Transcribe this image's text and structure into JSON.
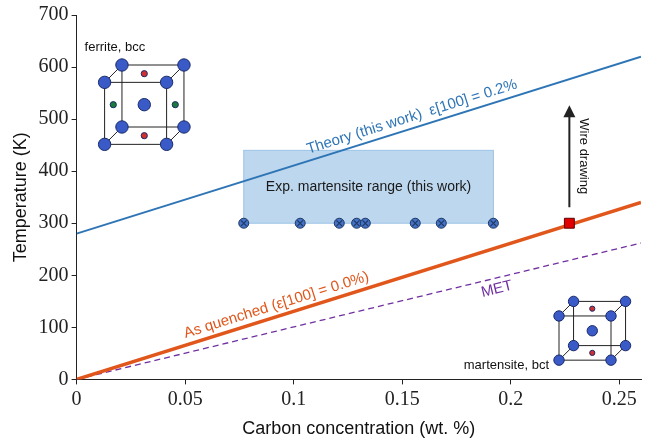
{
  "chart_data": {
    "type": "line",
    "x_label": "Carbon concentration (wt. %)",
    "y_label": "Temperature (K)",
    "xlim": [
      0,
      0.26
    ],
    "ylim": [
      0,
      700
    ],
    "xticks": [
      0,
      0.05,
      0.1,
      0.15,
      0.2,
      0.25
    ],
    "yticks": [
      0,
      100,
      200,
      300,
      400,
      500,
      600,
      700
    ],
    "grid": false,
    "series": [
      {
        "name": "Theory (this work)  ε[100] = 0.2%",
        "color": "#2e75b6",
        "line_style": "solid",
        "x": [
          0,
          0.26
        ],
        "values": [
          280,
          620
        ]
      },
      {
        "name": "As quenched (ε[100] = 0.0%)",
        "color": "#e0561b",
        "line_style": "solid",
        "x": [
          0,
          0.26
        ],
        "values": [
          0,
          340
        ]
      },
      {
        "name": "MET",
        "color": "#7030a0",
        "line_style": "dashed",
        "x": [
          0,
          0.26
        ],
        "values": [
          0,
          262
        ]
      },
      {
        "type": "scatter",
        "marker": "circle-x",
        "color": "#4472c4",
        "x": [
          0.077,
          0.103,
          0.121,
          0.129,
          0.133,
          0.156,
          0.168,
          0.192
        ],
        "values": [
          300,
          300,
          300,
          300,
          300,
          300,
          300,
          300
        ]
      },
      {
        "type": "scatter",
        "marker": "square",
        "color": "#e00000",
        "x": [
          0.227
        ],
        "values": [
          300
        ]
      }
    ],
    "region": {
      "text": "Exp. martensite range (this work)",
      "xlim": [
        0.077,
        0.192
      ],
      "ylim": [
        300,
        440
      ],
      "color": "#bdd7ee"
    },
    "annotations": [
      "ferrite, bcc",
      "martensite, bct",
      "Wire drawing"
    ]
  }
}
